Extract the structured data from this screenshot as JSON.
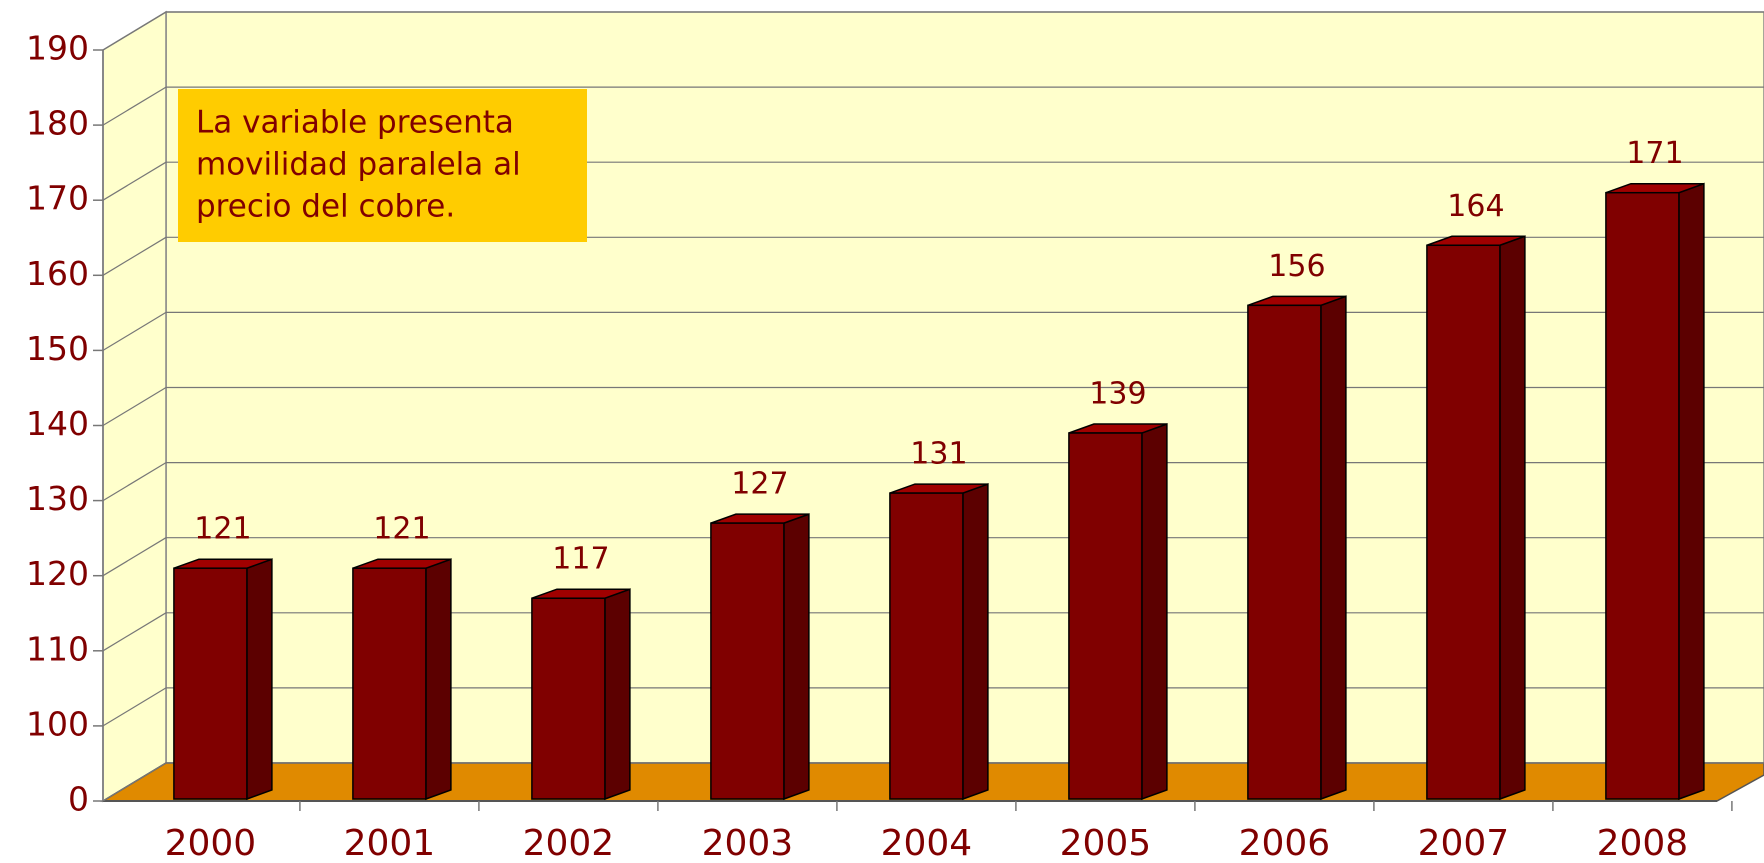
{
  "chart_data": {
    "type": "bar3d",
    "categories": [
      "2000",
      "2001",
      "2002",
      "2003",
      "2004",
      "2005",
      "2006",
      "2007",
      "2008"
    ],
    "values": [
      121,
      121,
      117,
      127,
      131,
      139,
      156,
      164,
      171
    ],
    "color": "#800000",
    "ylim": [
      0,
      190
    ],
    "yticks": [
      0,
      100,
      110,
      120,
      130,
      140,
      150,
      160,
      170,
      180,
      190
    ],
    "grid": true,
    "annotation": [
      "La variable presenta",
      "movilidad paralela al",
      "precio del cobre."
    ]
  }
}
